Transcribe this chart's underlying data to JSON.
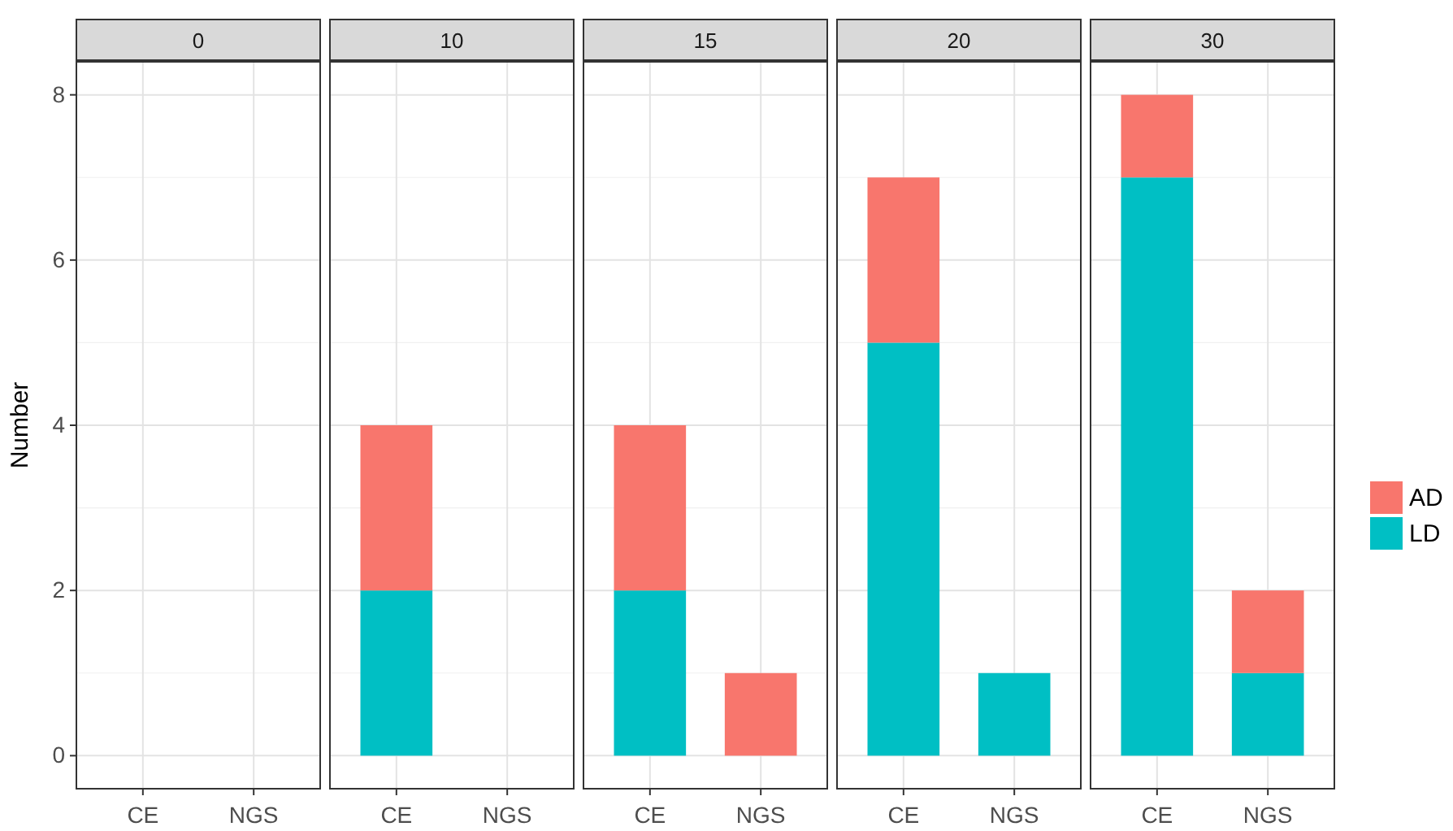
{
  "chart_data": [
    {
      "type": "bar",
      "title": "0",
      "ylabel": "Number",
      "categories": [
        "CE",
        "NGS"
      ],
      "ylim": [
        -0.4,
        8.4
      ],
      "yticks": [
        0,
        2,
        4,
        6,
        8
      ],
      "grid": true,
      "series": [
        {
          "values": [
            null,
            null
          ]
        },
        {
          "values": [
            null,
            null
          ]
        }
      ]
    },
    {
      "type": "bar",
      "title": "10",
      "categories": [
        "CE",
        "NGS"
      ],
      "stacked": true,
      "ylim": [
        -0.4,
        8.4
      ],
      "yticks": [
        0,
        2,
        4,
        6,
        8
      ],
      "grid": true,
      "tick_labels": "x",
      "series": [
        {
          "color": "#00bfc4",
          "values": [
            2,
            null
          ]
        },
        {
          "color": "#f8766d",
          "values": [
            2,
            null
          ]
        }
      ]
    },
    {
      "type": "bar",
      "title": "15",
      "categories": [
        "CE",
        "NGS"
      ],
      "stacked": true,
      "ylim": [
        -0.4,
        8.4
      ],
      "yticks": [
        0,
        2,
        4,
        6,
        8
      ],
      "grid": true,
      "tick_labels": "x",
      "series": [
        {
          "color": "#00bfc4",
          "values": [
            2,
            null
          ]
        },
        {
          "color": "#f8766d",
          "values": [
            2,
            1
          ]
        }
      ]
    },
    {
      "type": "bar",
      "title": "20",
      "categories": [
        "CE",
        "NGS"
      ],
      "stacked": true,
      "ylim": [
        -0.4,
        8.4
      ],
      "yticks": [
        0,
        2,
        4,
        6,
        8
      ],
      "grid": true,
      "tick_labels": "x",
      "series": [
        {
          "color": "#00bfc4",
          "values": [
            5,
            1
          ]
        },
        {
          "color": "#f8766d",
          "values": [
            2,
            null
          ]
        }
      ]
    },
    {
      "type": "bar",
      "title": "30",
      "categories": [
        "CE",
        "NGS"
      ],
      "stacked": true,
      "ylim": [
        -0.4,
        8.4
      ],
      "yticks": [
        0,
        2,
        4,
        6,
        8
      ],
      "grid": true,
      "tick_labels": "x",
      "legend": "right",
      "series": [
        {
          "name": "LD",
          "color": "#00bfc4",
          "values": [
            7,
            1
          ]
        },
        {
          "name": "AD",
          "color": "#f8766d",
          "values": [
            1,
            1
          ]
        }
      ]
    }
  ]
}
